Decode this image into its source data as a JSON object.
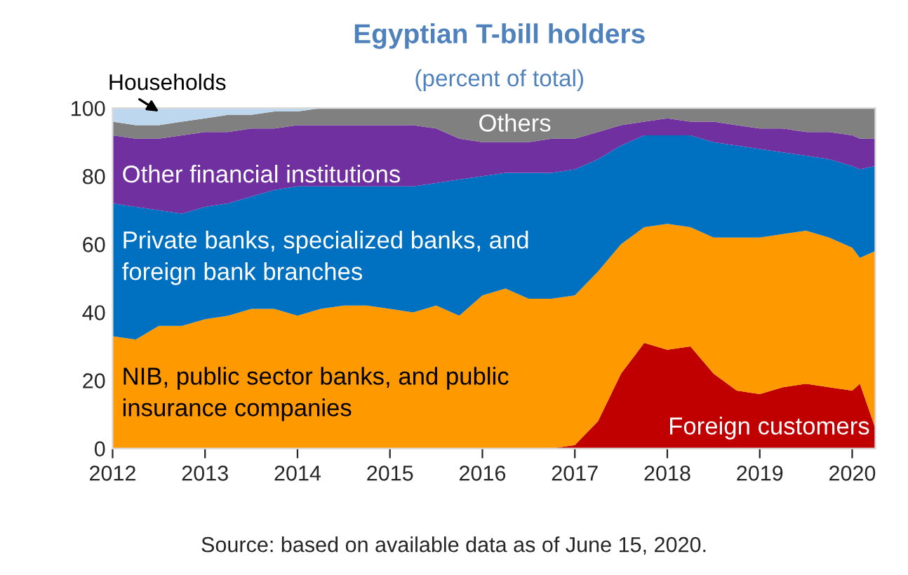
{
  "chart_data": {
    "type": "area",
    "stacked": true,
    "title": "Egyptian T-bill holders",
    "subtitle": "(percent of total)",
    "x": [
      "2012-01",
      "2012-04",
      "2012-07",
      "2012-10",
      "2013-01",
      "2013-04",
      "2013-07",
      "2013-10",
      "2014-01",
      "2014-04",
      "2014-07",
      "2014-10",
      "2015-01",
      "2015-04",
      "2015-07",
      "2015-10",
      "2016-01",
      "2016-04",
      "2016-07",
      "2016-10",
      "2017-01",
      "2017-04",
      "2017-07",
      "2017-10",
      "2018-01",
      "2018-04",
      "2018-07",
      "2018-10",
      "2019-01",
      "2019-04",
      "2019-07",
      "2019-10",
      "2020-01",
      "2020-02",
      "2020-04"
    ],
    "series": [
      {
        "name": "Foreign customers",
        "color": "#c00000",
        "values": [
          0,
          0,
          0,
          0,
          0,
          0,
          0,
          0,
          0,
          0,
          0,
          0,
          0,
          0,
          0,
          0,
          0,
          0,
          0,
          0,
          1,
          8,
          22,
          31,
          29,
          30,
          22,
          17,
          16,
          18,
          19,
          18,
          17,
          19,
          6
        ]
      },
      {
        "name": "NIB, public sector banks, and public insurance companies",
        "color": "#ff9900",
        "values": [
          33,
          32,
          36,
          36,
          38,
          39,
          41,
          41,
          39,
          41,
          42,
          42,
          41,
          40,
          42,
          39,
          45,
          47,
          44,
          44,
          44,
          44,
          38,
          34,
          37,
          35,
          40,
          45,
          46,
          45,
          45,
          44,
          42,
          37,
          52
        ]
      },
      {
        "name": "Private banks, specialized banks, and foreign bank branches",
        "color": "#0070c0",
        "values": [
          39,
          39,
          34,
          33,
          33,
          33,
          33,
          35,
          38,
          36,
          35,
          35,
          36,
          37,
          36,
          40,
          35,
          34,
          37,
          37,
          37,
          33,
          29,
          27,
          26,
          27,
          28,
          27,
          26,
          24,
          22,
          23,
          24,
          26,
          25
        ]
      },
      {
        "name": "Other financial institutions",
        "color": "#7030a0",
        "values": [
          20,
          20,
          21,
          23,
          22,
          21,
          20,
          18,
          18,
          18,
          18,
          18,
          18,
          18,
          16,
          12,
          10,
          9,
          9,
          10,
          9,
          8,
          6,
          4,
          5,
          4,
          6,
          6,
          6,
          7,
          7,
          8,
          9,
          9,
          8
        ]
      },
      {
        "name": "Others",
        "color": "#808080",
        "values": [
          4,
          4,
          4,
          4,
          4,
          5,
          4,
          5,
          4,
          5,
          5,
          5,
          5,
          5,
          6,
          9,
          10,
          10,
          10,
          9,
          9,
          7,
          5,
          4,
          3,
          4,
          4,
          5,
          6,
          6,
          7,
          7,
          8,
          9,
          9
        ]
      },
      {
        "name": "Households",
        "color": "#bdd7ee",
        "values": [
          4,
          5,
          5,
          4,
          3,
          2,
          2,
          1,
          1,
          0,
          0,
          0,
          0,
          0,
          0,
          0,
          0,
          0,
          0,
          0,
          0,
          0,
          0,
          0,
          0,
          0,
          0,
          0,
          0,
          0,
          0,
          0,
          0,
          0,
          0
        ]
      }
    ],
    "xlim": [
      "2012-01",
      "2020-04"
    ],
    "xticks": [
      "2012",
      "2013",
      "2014",
      "2015",
      "2016",
      "2017",
      "2018",
      "2019",
      "2020"
    ],
    "ylim": [
      0,
      100
    ],
    "yticks": [
      0,
      20,
      40,
      60,
      80,
      100
    ],
    "grid": false,
    "legend": false,
    "annotations": [
      "Source: based on available data as of June 15, 2020."
    ]
  }
}
